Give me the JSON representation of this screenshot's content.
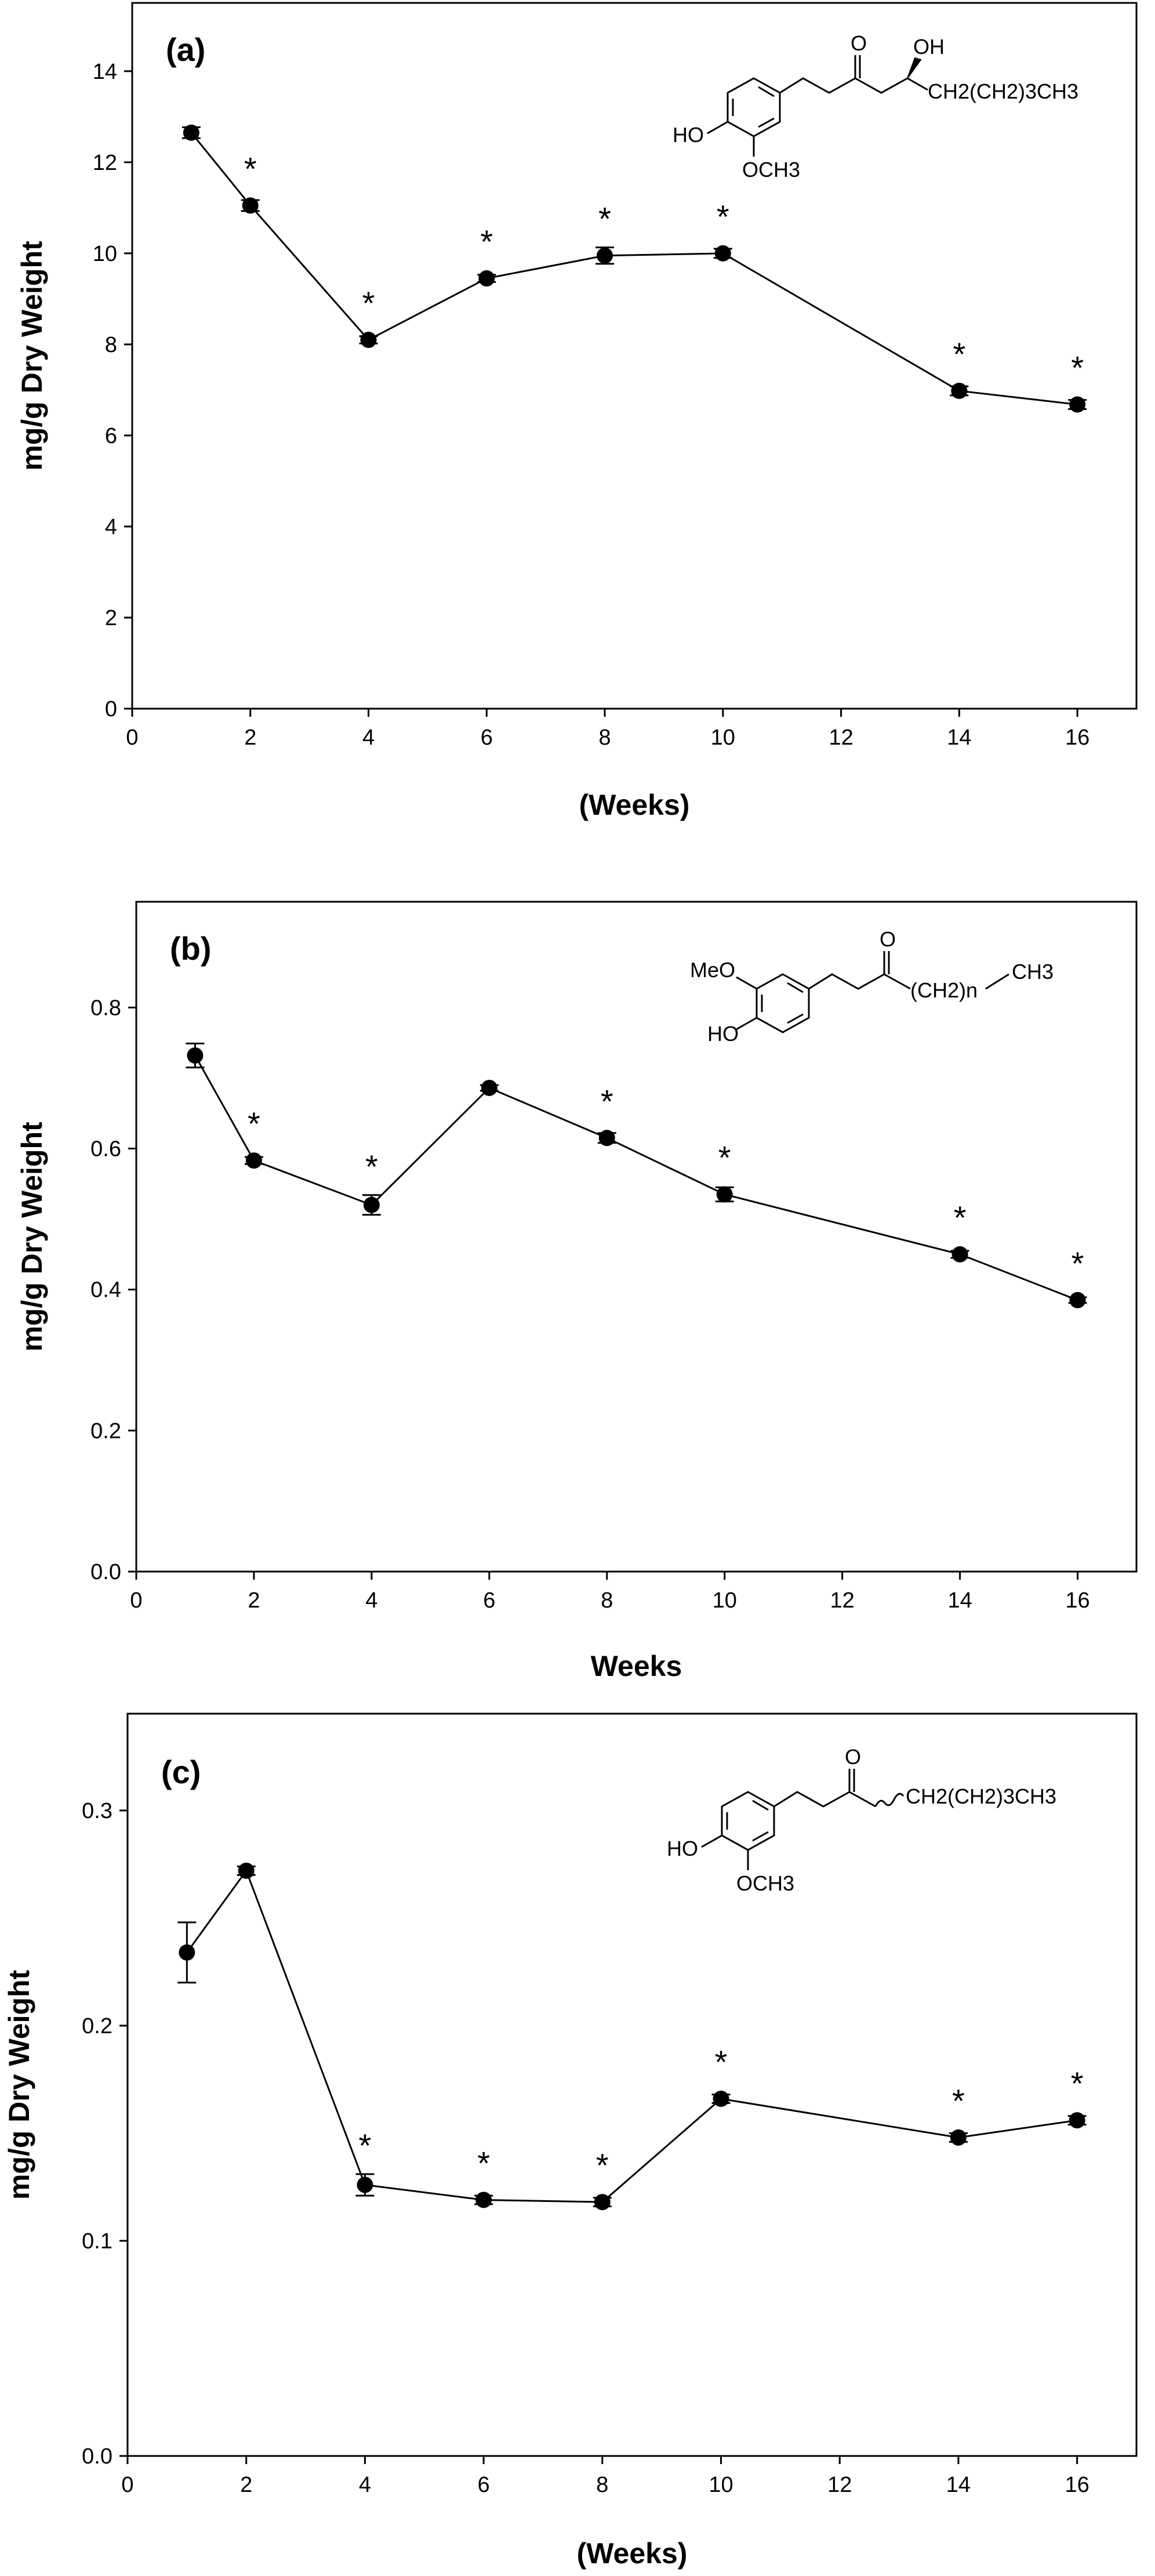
{
  "chart_data": [
    {
      "type": "line",
      "panel_label": "(a)",
      "xlabel": "(Weeks)",
      "ylabel": "mg/g Dry Weight",
      "xlim": [
        0,
        17
      ],
      "ylim": [
        0,
        15.5
      ],
      "xticks": [
        0,
        2,
        4,
        6,
        8,
        10,
        12,
        14,
        16
      ],
      "yticks": [
        0,
        2,
        4,
        6,
        8,
        10,
        12,
        14
      ],
      "tick_labels_x": [
        "0",
        "2",
        "4",
        "6",
        "8",
        "10",
        "12",
        "14",
        "16"
      ],
      "tick_labels_y": [
        "0",
        "2",
        "4",
        "6",
        "8",
        "10",
        "12",
        "14"
      ],
      "grid": false,
      "series": [
        {
          "x": [
            1,
            2,
            4,
            6,
            8,
            10,
            14,
            16
          ],
          "y": [
            12.65,
            11.05,
            8.1,
            9.45,
            9.95,
            10.0,
            6.98,
            6.68
          ],
          "err": [
            0.12,
            0.12,
            0.08,
            0.08,
            0.18,
            0.1,
            0.1,
            0.1
          ],
          "significant": [
            false,
            true,
            true,
            true,
            true,
            true,
            true,
            true
          ]
        }
      ],
      "structure": {
        "labels": [
          "O",
          "OH",
          "HO",
          "OCH3",
          "CH2(CH2)3CH3"
        ]
      }
    },
    {
      "type": "line",
      "panel_label": "(b)",
      "xlabel": "Weeks",
      "ylabel": "mg/g Dry Weight",
      "xlim": [
        0,
        17
      ],
      "ylim": [
        0,
        0.95
      ],
      "xticks": [
        0,
        2,
        4,
        6,
        8,
        10,
        12,
        14,
        16
      ],
      "yticks": [
        0.0,
        0.2,
        0.4,
        0.6,
        0.8
      ],
      "tick_labels_x": [
        "0",
        "2",
        "4",
        "6",
        "8",
        "10",
        "12",
        "14",
        "16"
      ],
      "tick_labels_y": [
        "0.0",
        "0.2",
        "0.4",
        "0.6",
        "0.8"
      ],
      "grid": false,
      "series": [
        {
          "x": [
            1,
            2,
            4,
            6,
            8,
            10,
            14,
            16
          ],
          "y": [
            0.732,
            0.583,
            0.52,
            0.686,
            0.615,
            0.535,
            0.45,
            0.385
          ],
          "err": [
            0.017,
            0.005,
            0.014,
            0.004,
            0.007,
            0.01,
            0.005,
            0.004
          ],
          "significant": [
            false,
            true,
            true,
            false,
            true,
            true,
            true,
            true
          ]
        }
      ],
      "structure": {
        "labels": [
          "MeO",
          "HO",
          "O",
          "(CH2)n",
          "CH3"
        ]
      }
    },
    {
      "type": "line",
      "panel_label": "(c)",
      "xlabel": "(Weeks)",
      "ylabel": "mg/g Dry Weight",
      "xlim": [
        0,
        17
      ],
      "ylim": [
        0,
        0.345
      ],
      "xticks": [
        0,
        2,
        4,
        6,
        8,
        10,
        12,
        14,
        16
      ],
      "yticks": [
        0.0,
        0.1,
        0.2,
        0.3
      ],
      "tick_labels_x": [
        "0",
        "2",
        "4",
        "6",
        "8",
        "10",
        "12",
        "14",
        "16"
      ],
      "tick_labels_y": [
        "0.0",
        "0.1",
        "0.2",
        "0.3"
      ],
      "grid": false,
      "series": [
        {
          "x": [
            1,
            2,
            4,
            6,
            8,
            10,
            14,
            16
          ],
          "y": [
            0.234,
            0.272,
            0.126,
            0.119,
            0.118,
            0.166,
            0.148,
            0.156
          ],
          "err": [
            0.014,
            0.002,
            0.005,
            0.002,
            0.002,
            0.002,
            0.002,
            0.002
          ],
          "significant": [
            false,
            false,
            true,
            true,
            true,
            true,
            true,
            true
          ]
        }
      ],
      "structure": {
        "labels": [
          "O",
          "HO",
          "OCH3",
          "CH2(CH2)3CH3"
        ]
      }
    }
  ]
}
